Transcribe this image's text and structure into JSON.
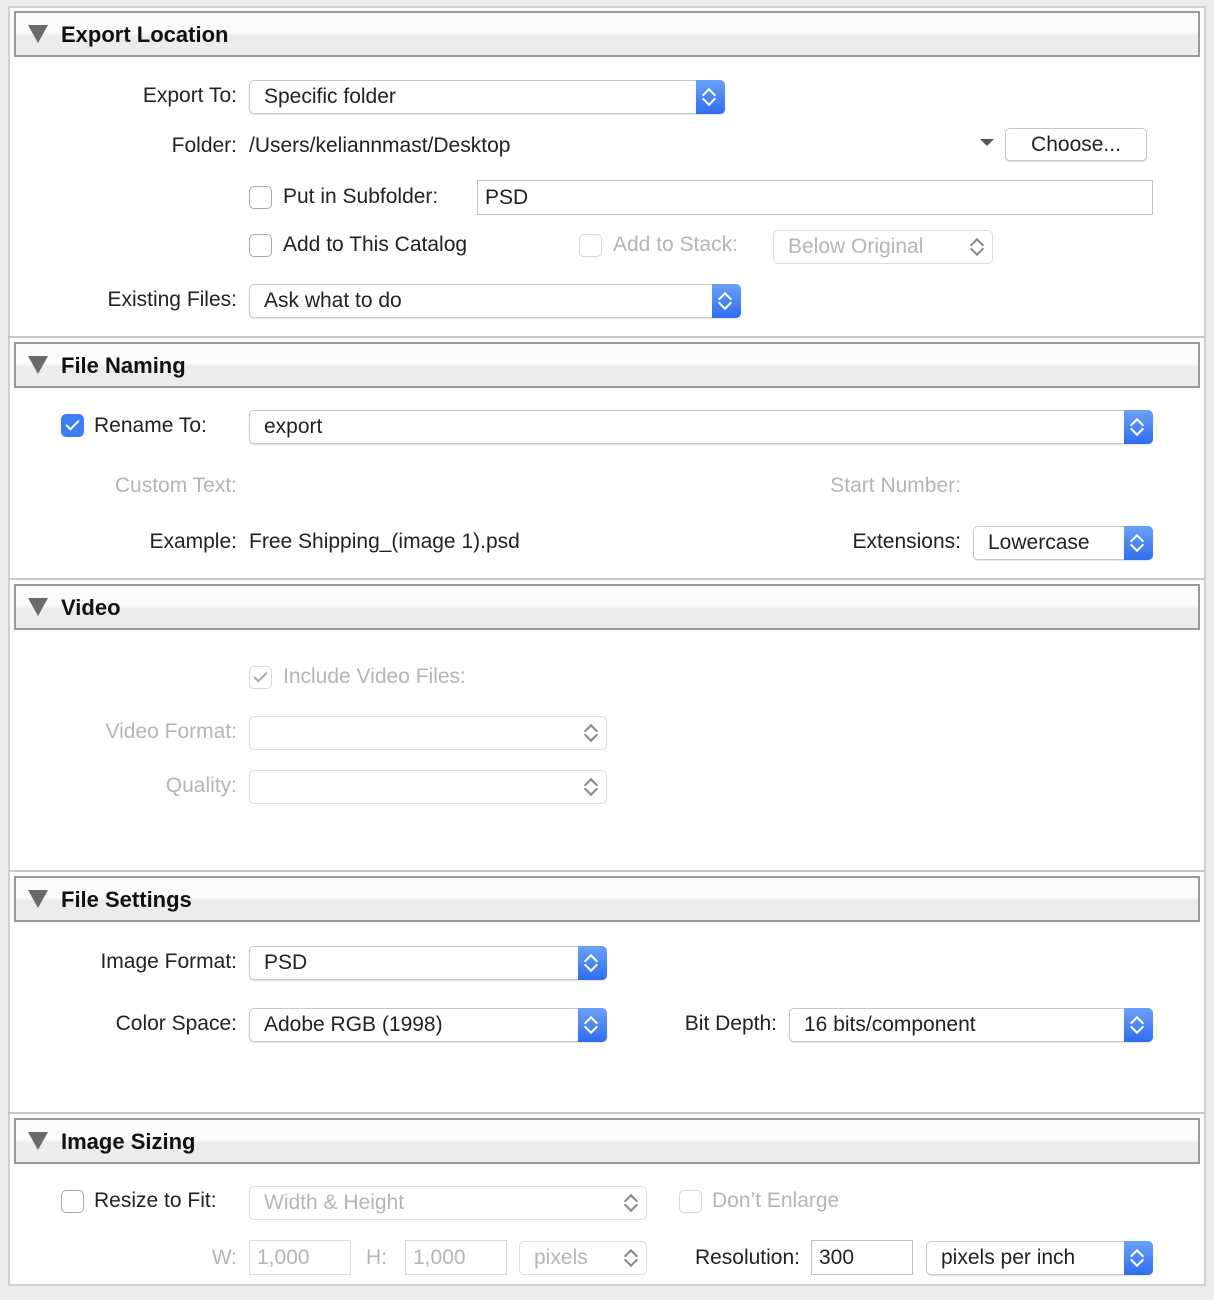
{
  "sections": {
    "export_location": "Export Location",
    "file_naming": "File Naming",
    "video": "Video",
    "file_settings": "File Settings",
    "image_sizing": "Image Sizing"
  },
  "export_location": {
    "export_to_label": "Export To:",
    "export_to_value": "Specific folder",
    "folder_label": "Folder:",
    "folder_value": "/Users/keliannmast/Desktop",
    "choose_button": "Choose...",
    "subfolder_label": "Put in Subfolder:",
    "subfolder_checked": false,
    "subfolder_value": "PSD",
    "add_catalog_label": "Add to This Catalog",
    "add_catalog_checked": false,
    "add_stack_label": "Add to Stack:",
    "add_stack_value": "Below Original",
    "existing_files_label": "Existing Files:",
    "existing_files_value": "Ask what to do"
  },
  "file_naming": {
    "rename_label": "Rename To:",
    "rename_checked": true,
    "rename_value": "export",
    "custom_text_label": "Custom Text:",
    "start_number_label": "Start Number:",
    "example_label": "Example:",
    "example_value": "Free Shipping_(image 1).psd",
    "extensions_label": "Extensions:",
    "extensions_value": "Lowercase"
  },
  "video": {
    "include_label": "Include Video Files:",
    "include_checked": true,
    "format_label": "Video Format:",
    "format_value": "",
    "quality_label": "Quality:",
    "quality_value": ""
  },
  "file_settings": {
    "image_format_label": "Image Format:",
    "image_format_value": "PSD",
    "color_space_label": "Color Space:",
    "color_space_value": "Adobe RGB (1998)",
    "bit_depth_label": "Bit Depth:",
    "bit_depth_value": "16 bits/component"
  },
  "image_sizing": {
    "resize_label": "Resize to Fit:",
    "resize_checked": false,
    "resize_value": "Width & Height",
    "dont_enlarge_label": "Don’t Enlarge",
    "w_label": "W:",
    "w_value": "1,000",
    "h_label": "H:",
    "h_value": "1,000",
    "unit_value": "pixels",
    "resolution_label": "Resolution:",
    "resolution_value": "300",
    "resolution_unit": "pixels per inch"
  },
  "colors": {
    "accent": "#3b7ef5",
    "disabled_text": "#b5b5b5"
  }
}
